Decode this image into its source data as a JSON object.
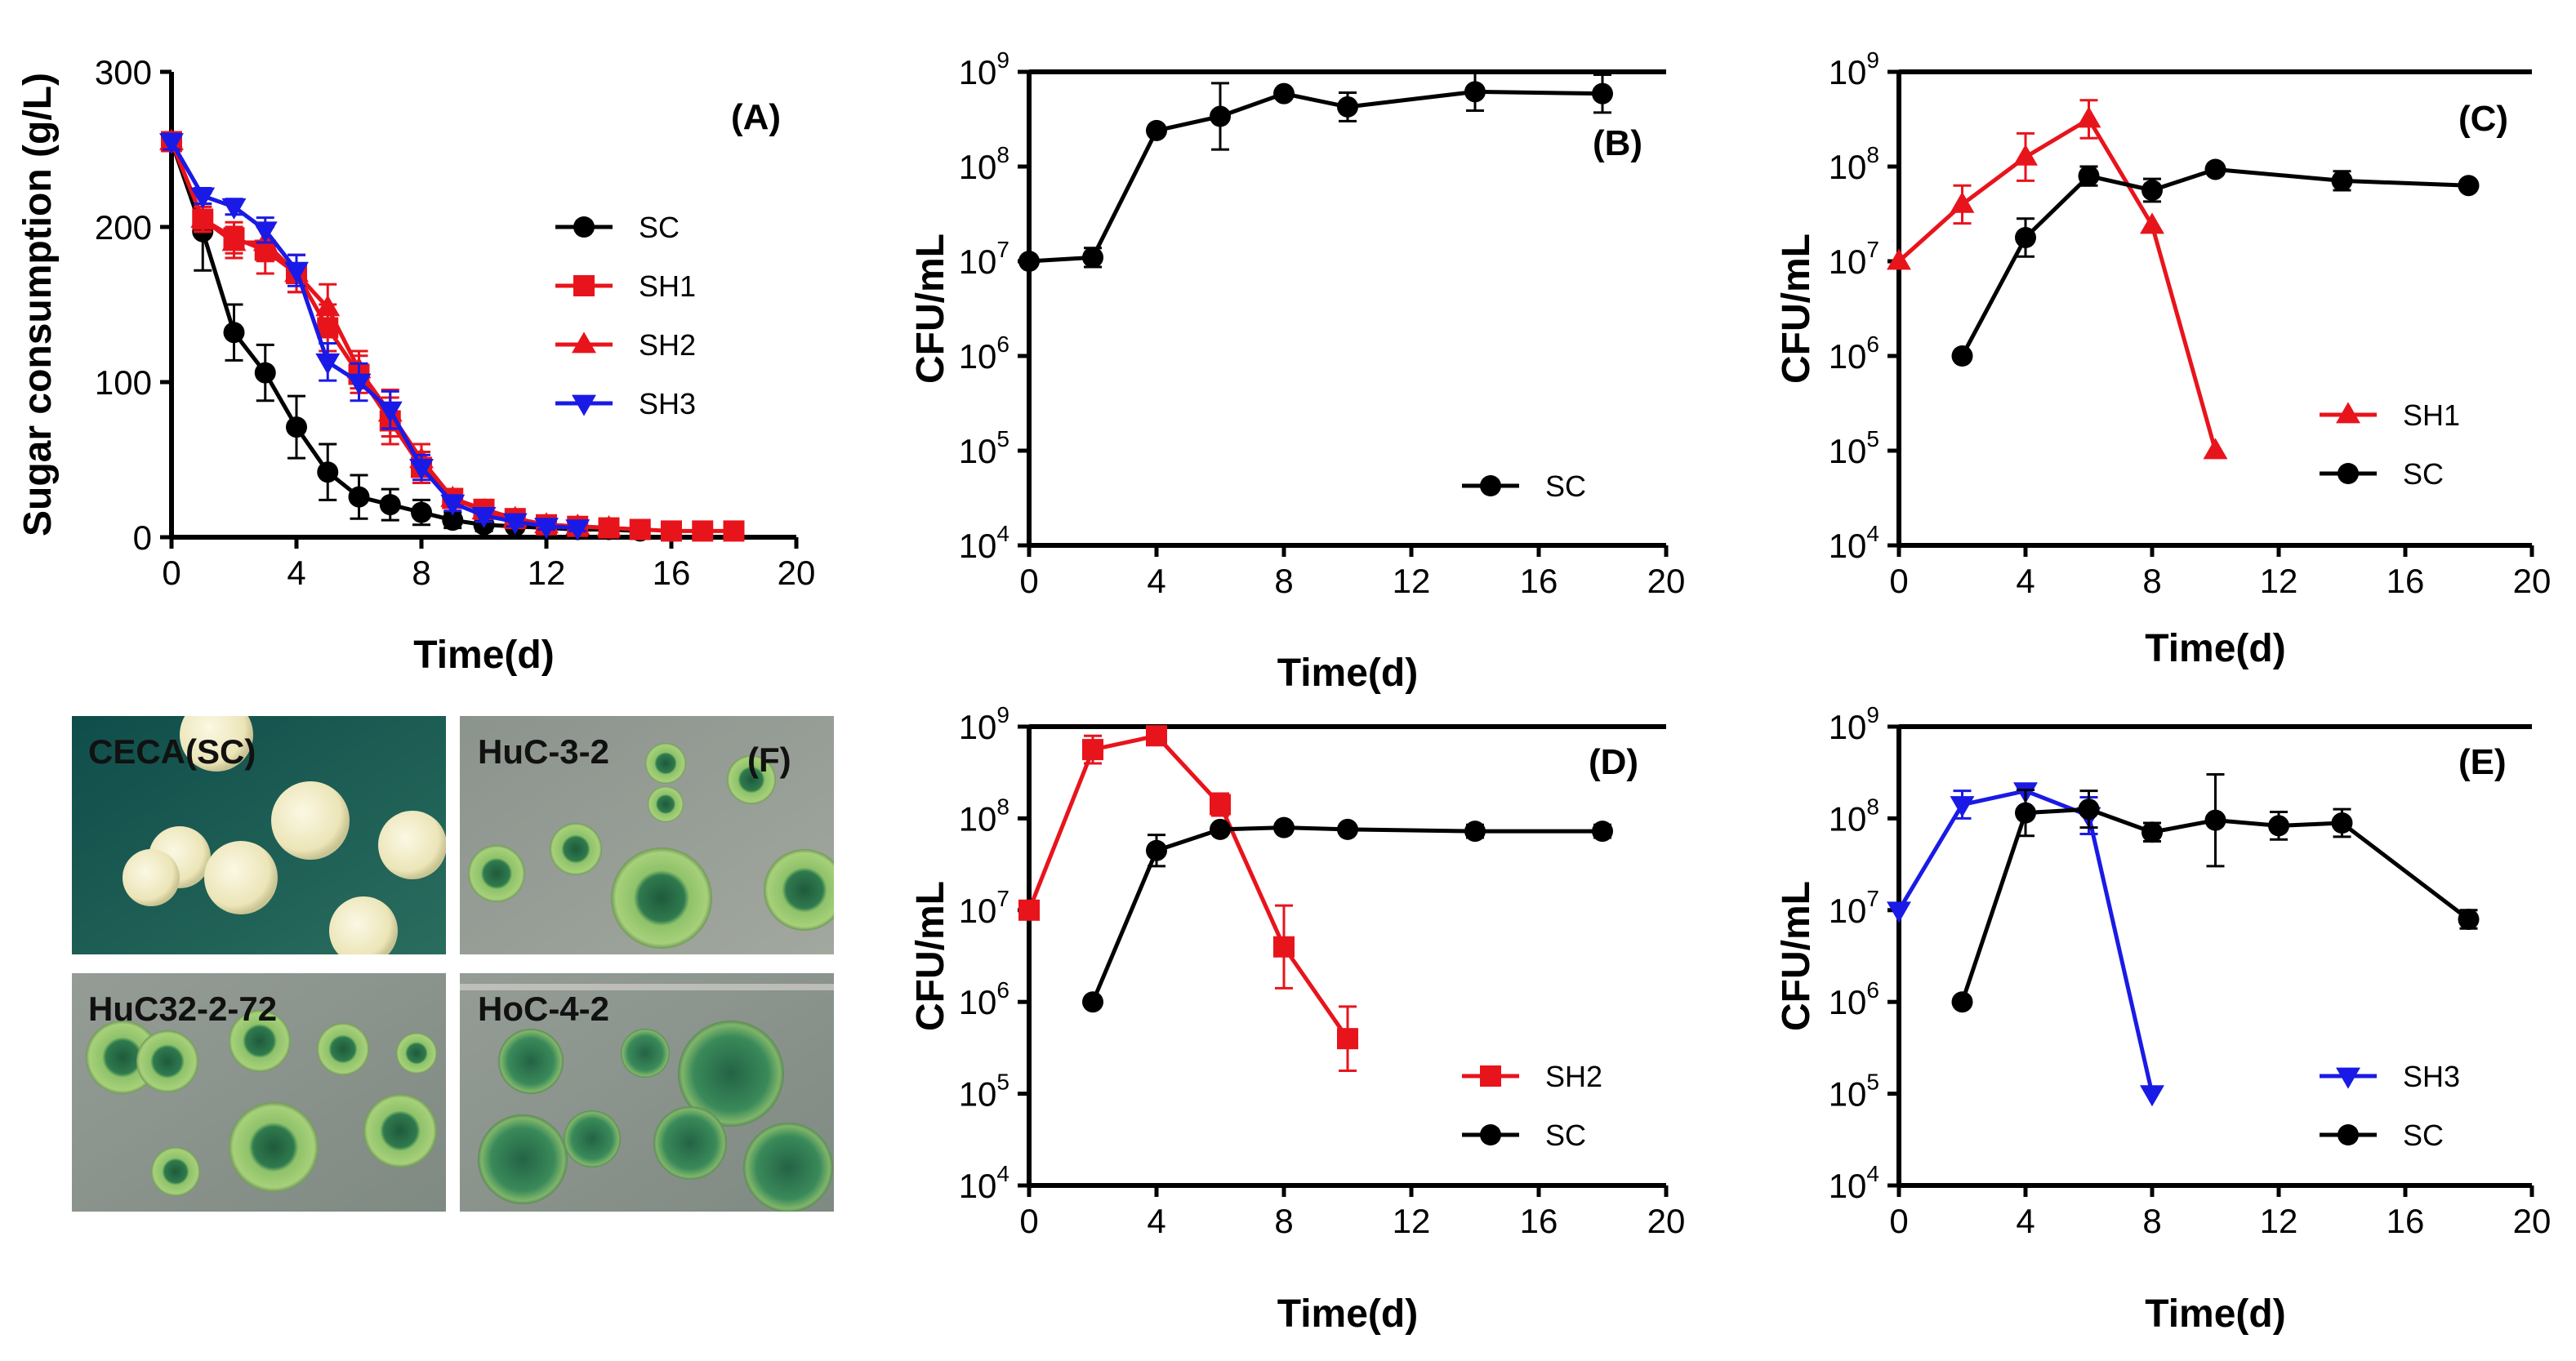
{
  "colors": {
    "SC": "#000000",
    "SH1": "#e8141c",
    "SH2": "#e8141c",
    "SH3": "#1a1ae6"
  },
  "chart_data": [
    {
      "id": "A",
      "type": "line",
      "panel_label": "(A)",
      "xlabel": "Time(d)",
      "ylabel": "Sugar consumption (g/L)",
      "xlim": [
        0,
        20
      ],
      "ylim": [
        0,
        300
      ],
      "yscale": "linear",
      "xticks": [
        0,
        4,
        8,
        12,
        16,
        20
      ],
      "yticks": [
        0,
        100,
        200,
        300
      ],
      "legend": "right-center",
      "series": [
        {
          "name": "SC",
          "color": "#000000",
          "marker": "circle",
          "x": [
            0,
            1,
            2,
            3,
            4,
            5,
            6,
            7,
            8,
            9,
            10,
            11,
            12,
            13,
            14,
            15
          ],
          "y": [
            255,
            197,
            132,
            106,
            71,
            42,
            26,
            21,
            16,
            11,
            8,
            7,
            6,
            5,
            5,
            4
          ],
          "err": [
            5,
            25,
            18,
            18,
            20,
            18,
            14,
            10,
            8,
            5,
            4,
            3,
            2,
            2,
            2,
            2
          ]
        },
        {
          "name": "SH1",
          "color": "#e8141c",
          "marker": "square",
          "x": [
            0,
            1,
            2,
            3,
            4,
            5,
            6,
            7,
            8,
            9,
            10,
            11,
            12,
            13,
            14,
            15,
            16,
            17,
            18
          ],
          "y": [
            255,
            205,
            193,
            185,
            170,
            135,
            105,
            75,
            45,
            25,
            18,
            12,
            8,
            7,
            6,
            5,
            4,
            4,
            4
          ],
          "err": [
            5,
            8,
            10,
            15,
            12,
            15,
            12,
            15,
            10,
            6,
            5,
            4,
            3,
            2,
            2,
            2,
            2,
            2,
            2
          ]
        },
        {
          "name": "SH2",
          "color": "#e8141c",
          "marker": "triangle-up",
          "x": [
            0,
            1,
            2,
            3,
            4,
            5,
            6,
            7,
            8,
            9,
            10,
            11,
            12,
            13,
            14
          ],
          "y": [
            255,
            205,
            190,
            190,
            170,
            148,
            108,
            80,
            50,
            25,
            17,
            12,
            8,
            7,
            6
          ],
          "err": [
            5,
            8,
            10,
            12,
            12,
            15,
            12,
            15,
            10,
            6,
            5,
            4,
            3,
            2,
            2
          ]
        },
        {
          "name": "SH3",
          "color": "#1a1ae6",
          "marker": "triangle-down",
          "x": [
            0,
            1,
            2,
            3,
            4,
            5,
            6,
            7,
            8,
            9,
            10,
            11,
            12,
            13
          ],
          "y": [
            255,
            220,
            213,
            198,
            172,
            113,
            100,
            82,
            45,
            22,
            14,
            10,
            7,
            6
          ],
          "err": [
            5,
            5,
            5,
            8,
            10,
            12,
            12,
            12,
            8,
            5,
            4,
            3,
            2,
            2
          ]
        }
      ]
    },
    {
      "id": "B",
      "type": "line",
      "panel_label": "(B)",
      "xlabel": "Time(d)",
      "ylabel": "CFU/mL",
      "xlim": [
        0,
        20
      ],
      "ylim": [
        4,
        9
      ],
      "yscale": "log10",
      "xticks": [
        0,
        4,
        8,
        12,
        16,
        20
      ],
      "yticks": [
        4,
        5,
        6,
        7,
        8,
        9
      ],
      "legend": "bottom-right",
      "series": [
        {
          "name": "SC",
          "color": "#000000",
          "marker": "circle",
          "x": [
            0,
            2,
            4,
            6,
            8,
            10,
            14,
            18
          ],
          "y": [
            7.0,
            7.04,
            8.38,
            8.53,
            8.77,
            8.63,
            8.79,
            8.77
          ],
          "err": [
            0,
            0.1,
            0,
            0.35,
            0,
            0.15,
            0.2,
            0.2
          ]
        }
      ]
    },
    {
      "id": "C",
      "type": "line",
      "panel_label": "(C)",
      "xlabel": "Time(d)",
      "ylabel": "CFU/mL",
      "xlim": [
        0,
        20
      ],
      "ylim": [
        4,
        9
      ],
      "yscale": "log10",
      "xticks": [
        0,
        4,
        8,
        12,
        16,
        20
      ],
      "yticks": [
        4,
        5,
        6,
        7,
        8,
        9
      ],
      "legend": "bottom-right",
      "series": [
        {
          "name": "SH1",
          "color": "#e8141c",
          "marker": "triangle-up",
          "x": [
            0,
            2,
            4,
            6,
            8,
            10
          ],
          "y": [
            7.0,
            7.6,
            8.1,
            8.5,
            7.38,
            5.0
          ],
          "err": [
            0,
            0.2,
            0.25,
            0.2,
            0,
            0
          ]
        },
        {
          "name": "SC",
          "color": "#000000",
          "marker": "circle",
          "x": [
            2,
            4,
            6,
            8,
            10,
            14,
            18
          ],
          "y": [
            6.0,
            7.25,
            7.9,
            7.75,
            7.97,
            7.85,
            7.8
          ],
          "err": [
            0,
            0.2,
            0.1,
            0.12,
            0,
            0.1,
            0
          ]
        }
      ]
    },
    {
      "id": "D",
      "type": "line",
      "panel_label": "(D)",
      "xlabel": "Time(d)",
      "ylabel": "CFU/mL",
      "xlim": [
        0,
        20
      ],
      "ylim": [
        4,
        9
      ],
      "yscale": "log10",
      "xticks": [
        0,
        4,
        8,
        12,
        16,
        20
      ],
      "yticks": [
        4,
        5,
        6,
        7,
        8,
        9
      ],
      "legend": "bottom-right",
      "series": [
        {
          "name": "SH2",
          "color": "#e8141c",
          "marker": "square",
          "x": [
            0,
            2,
            4,
            6,
            8,
            10
          ],
          "y": [
            7.0,
            8.75,
            8.9,
            8.15,
            6.6,
            5.6
          ],
          "err": [
            0,
            0.15,
            0.07,
            0.12,
            0.45,
            0.35
          ]
        },
        {
          "name": "SC",
          "color": "#000000",
          "marker": "circle",
          "x": [
            2,
            4,
            6,
            8,
            10,
            14,
            18
          ],
          "y": [
            6.0,
            7.65,
            7.88,
            7.9,
            7.88,
            7.86,
            7.86
          ],
          "err": [
            0,
            0.17,
            0,
            0,
            0,
            0.07,
            0.07
          ]
        }
      ]
    },
    {
      "id": "E",
      "type": "line",
      "panel_label": "(E)",
      "xlabel": "Time(d)",
      "ylabel": "CFU/mL",
      "xlim": [
        0,
        20
      ],
      "ylim": [
        4,
        9
      ],
      "yscale": "log10",
      "xticks": [
        0,
        4,
        8,
        12,
        16,
        20
      ],
      "yticks": [
        4,
        5,
        6,
        7,
        8,
        9
      ],
      "legend": "bottom-right",
      "series": [
        {
          "name": "SH3",
          "color": "#1a1ae6",
          "marker": "triangle-down",
          "x": [
            0,
            2,
            4,
            6,
            8
          ],
          "y": [
            7.0,
            8.15,
            8.3,
            8.03,
            5.0
          ],
          "err": [
            0,
            0.15,
            0,
            0.2,
            0
          ]
        },
        {
          "name": "SC",
          "color": "#000000",
          "marker": "circle",
          "x": [
            2,
            4,
            6,
            8,
            10,
            12,
            14,
            18
          ],
          "y": [
            6.0,
            8.06,
            8.1,
            7.85,
            7.98,
            7.92,
            7.95,
            6.9
          ],
          "err": [
            0,
            0.25,
            0.2,
            0.1,
            0.5,
            0.15,
            0.15,
            0.1
          ]
        }
      ]
    }
  ],
  "photos": {
    "panel_label": "(F)",
    "cells": [
      {
        "label": "CECA(SC)"
      },
      {
        "label": "HuC-3-2"
      },
      {
        "label": "HuC32-2-72"
      },
      {
        "label": "HoC-4-2"
      }
    ]
  }
}
